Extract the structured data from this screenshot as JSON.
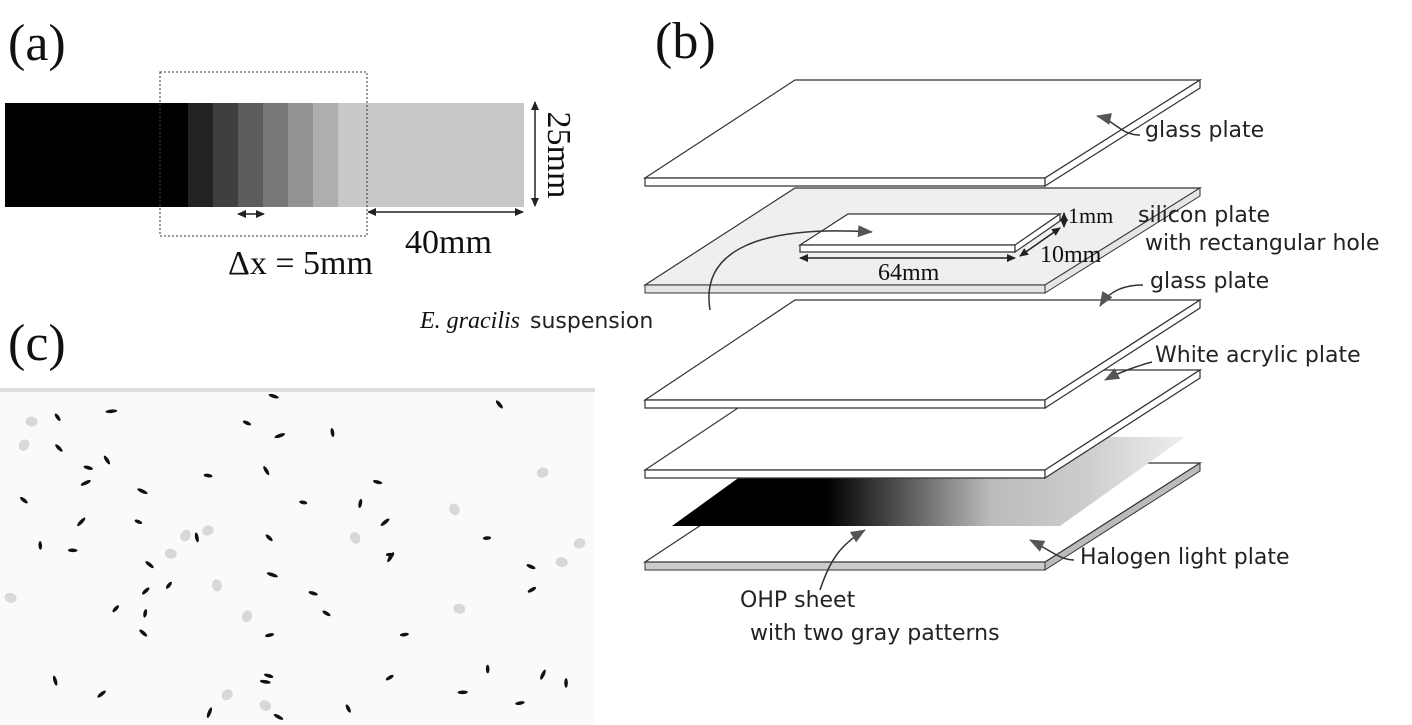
{
  "panels": {
    "a": {
      "label": "(a)",
      "height": "25mm",
      "width": "40mm",
      "step": "Δx = 5mm"
    },
    "b": {
      "label": "(b)",
      "top_glass": "glass plate",
      "silicon_1": "silicon plate",
      "silicon_2": "with rectangular hole",
      "hole_height": "1mm",
      "hole_width": "10mm",
      "hole_length": "64mm",
      "suspension_species": "E. gracilis",
      "suspension_word": "suspension",
      "glass": "glass plate",
      "acrylic": "White acrylic plate",
      "halogen": "Halogen light plate",
      "ohp_1": "OHP sheet",
      "ohp_2": "with two gray patterns"
    },
    "c": {
      "label": "(c)"
    }
  }
}
